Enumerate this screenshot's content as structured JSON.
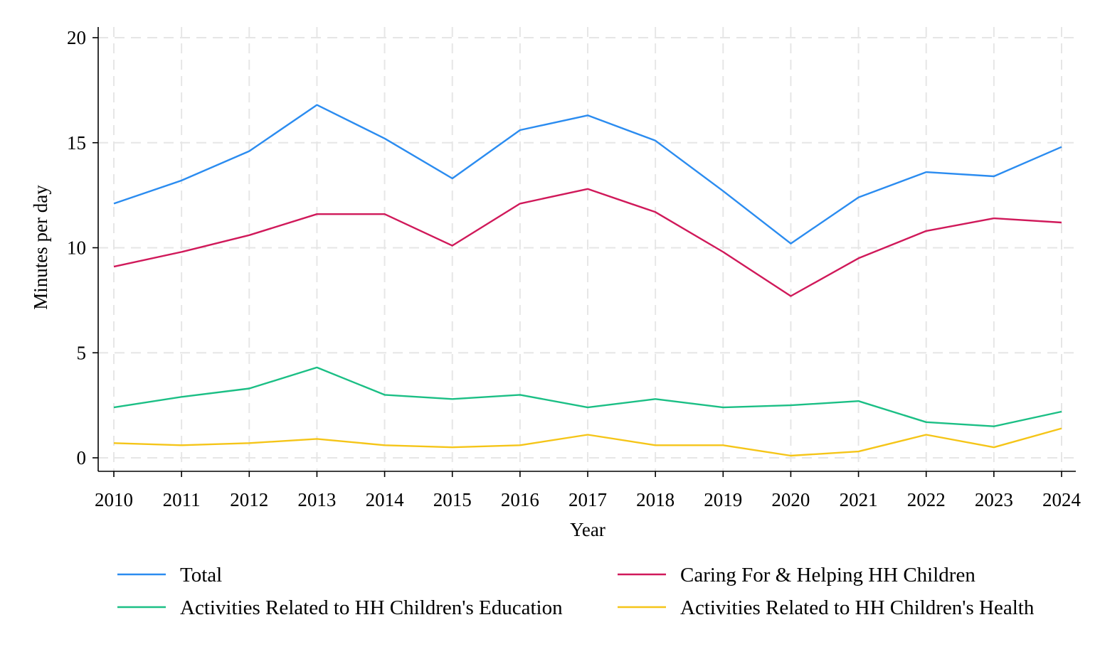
{
  "chart_data": {
    "type": "line",
    "xlabel": "Year",
    "ylabel": "Minutes per day",
    "xlim": [
      2010,
      2024
    ],
    "ylim": [
      0,
      20
    ],
    "yticks": [
      0,
      5,
      10,
      15,
      20
    ],
    "grid": true,
    "legend_position": "bottom",
    "x": [
      2010,
      2011,
      2012,
      2013,
      2014,
      2015,
      2016,
      2017,
      2018,
      2019,
      2020,
      2021,
      2022,
      2023,
      2024
    ],
    "series": [
      {
        "name": "Total",
        "color": "#2b8cf0",
        "values": [
          12.1,
          13.2,
          14.6,
          16.8,
          15.2,
          13.3,
          15.6,
          16.3,
          15.1,
          12.7,
          10.2,
          12.4,
          13.6,
          13.4,
          14.8
        ]
      },
      {
        "name": "Caring For & Helping HH Children",
        "color": "#d0195a",
        "values": [
          9.1,
          9.8,
          10.6,
          11.6,
          11.6,
          10.1,
          12.1,
          12.8,
          11.7,
          9.8,
          7.7,
          9.5,
          10.8,
          11.4,
          11.2
        ]
      },
      {
        "name": "Activities Related to HH Children's Education",
        "color": "#1bbf85",
        "values": [
          2.4,
          2.9,
          3.3,
          4.3,
          3.0,
          2.8,
          3.0,
          2.4,
          2.8,
          2.4,
          2.5,
          2.7,
          1.7,
          1.5,
          2.2
        ]
      },
      {
        "name": "Activities Related to HH Children's Health",
        "color": "#f5c518",
        "values": [
          0.7,
          0.6,
          0.7,
          0.9,
          0.6,
          0.5,
          0.6,
          1.1,
          0.6,
          0.6,
          0.1,
          0.3,
          1.1,
          0.5,
          1.4
        ]
      }
    ]
  }
}
